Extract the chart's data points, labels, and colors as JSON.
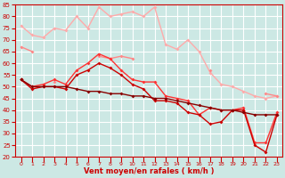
{
  "title": "",
  "xlabel": "Vent moyen/en rafales ( km/h )",
  "background_color": "#cce8e4",
  "grid_color": "#ffffff",
  "x_values": [
    0,
    1,
    2,
    3,
    4,
    5,
    6,
    7,
    8,
    9,
    10,
    11,
    12,
    13,
    14,
    15,
    16,
    17,
    18,
    19,
    20,
    21,
    22,
    23
  ],
  "series": [
    {
      "color": "#ffaaaa",
      "data": [
        76,
        72,
        71,
        75,
        74,
        80,
        75,
        84,
        80,
        81,
        82,
        80,
        84,
        68,
        66,
        70,
        65,
        56,
        51,
        50,
        48,
        46,
        45,
        46
      ],
      "lw": 1.0
    },
    {
      "color": "#ff8888",
      "data": [
        67,
        65,
        null,
        52,
        null,
        null,
        null,
        63,
        62,
        63,
        62,
        null,
        null,
        null,
        null,
        null,
        null,
        57,
        null,
        null,
        null,
        null,
        47,
        46
      ],
      "lw": 1.0
    },
    {
      "color": "#ff3333",
      "data": [
        53,
        50,
        51,
        53,
        51,
        57,
        60,
        64,
        62,
        57,
        53,
        52,
        52,
        46,
        45,
        44,
        38,
        41,
        40,
        40,
        41,
        26,
        26,
        39
      ],
      "lw": 1.0
    },
    {
      "color": "#cc0000",
      "data": [
        53,
        49,
        50,
        50,
        49,
        55,
        57,
        60,
        58,
        55,
        51,
        49,
        44,
        44,
        43,
        39,
        38,
        34,
        35,
        40,
        40,
        25,
        22,
        38
      ],
      "lw": 1.0
    },
    {
      "color": "#880000",
      "data": [
        53,
        50,
        50,
        50,
        50,
        49,
        48,
        48,
        47,
        47,
        46,
        46,
        45,
        45,
        44,
        43,
        42,
        41,
        40,
        40,
        39,
        38,
        38,
        38
      ],
      "lw": 1.0
    }
  ],
  "ylim": [
    20,
    85
  ],
  "yticks": [
    20,
    25,
    30,
    35,
    40,
    45,
    50,
    55,
    60,
    65,
    70,
    75,
    80,
    85
  ],
  "xlim": [
    -0.5,
    23.5
  ],
  "xticks": [
    0,
    1,
    2,
    3,
    4,
    5,
    6,
    7,
    8,
    9,
    10,
    11,
    12,
    13,
    14,
    15,
    16,
    17,
    18,
    19,
    20,
    21,
    22,
    23
  ],
  "tick_color": "#cc0000",
  "label_color": "#cc0000",
  "markersize": 2.0
}
